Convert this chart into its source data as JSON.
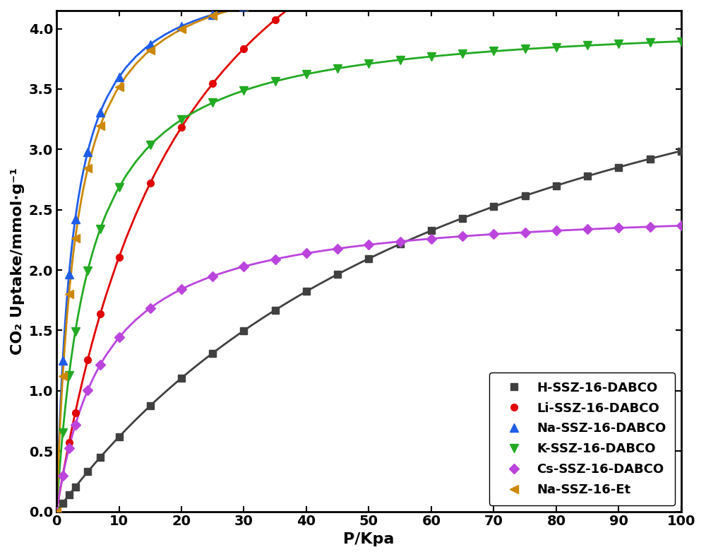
{
  "title": "",
  "xlabel": "P/Kpa",
  "ylabel": "CO₂ Uptake/mmol·g⁻¹",
  "xlim": [
    0,
    100
  ],
  "ylim": [
    0,
    4.15
  ],
  "xticks": [
    0,
    10,
    20,
    30,
    40,
    50,
    60,
    70,
    80,
    90,
    100
  ],
  "yticks": [
    0.0,
    0.5,
    1.0,
    1.5,
    2.0,
    2.5,
    3.0,
    3.5,
    4.0
  ],
  "series": [
    {
      "label": "H-SSZ-16-DABCO",
      "color": "#404040",
      "marker": "s",
      "markersize": 7,
      "linewidth": 2.0,
      "q_max": 5.2,
      "K": 0.0135
    },
    {
      "label": "Li-SSZ-16-DABCO",
      "color": "#e00000",
      "marker": "o",
      "markersize": 7,
      "linewidth": 2.0,
      "q_max": 6.5,
      "K": 0.048
    },
    {
      "label": "Na-SSZ-16-DABCO",
      "color": "#1f5de8",
      "marker": "^",
      "markersize": 8,
      "linewidth": 2.0,
      "q_max": 4.55,
      "K": 0.38
    },
    {
      "label": "K-SSZ-16-DABCO",
      "color": "#22aa22",
      "marker": "v",
      "markersize": 8,
      "linewidth": 2.0,
      "q_max": 4.1,
      "K": 0.19
    },
    {
      "label": "Cs-SSZ-16-DABCO",
      "color": "#bb44dd",
      "marker": "D",
      "markersize": 7,
      "linewidth": 2.0,
      "q_max": 2.55,
      "K": 0.13
    },
    {
      "label": "Na-SSZ-16-Et",
      "color": "#cc8800",
      "marker": "<",
      "markersize": 8,
      "linewidth": 2.0,
      "q_max": 4.62,
      "K": 0.32
    }
  ],
  "legend_loc": "lower right",
  "legend_fontsize": 13,
  "axis_fontsize": 16,
  "tick_fontsize": 14,
  "figure_width": 10.0,
  "figure_height": 7.88,
  "dpi": 100,
  "background_color": "#ffffff"
}
